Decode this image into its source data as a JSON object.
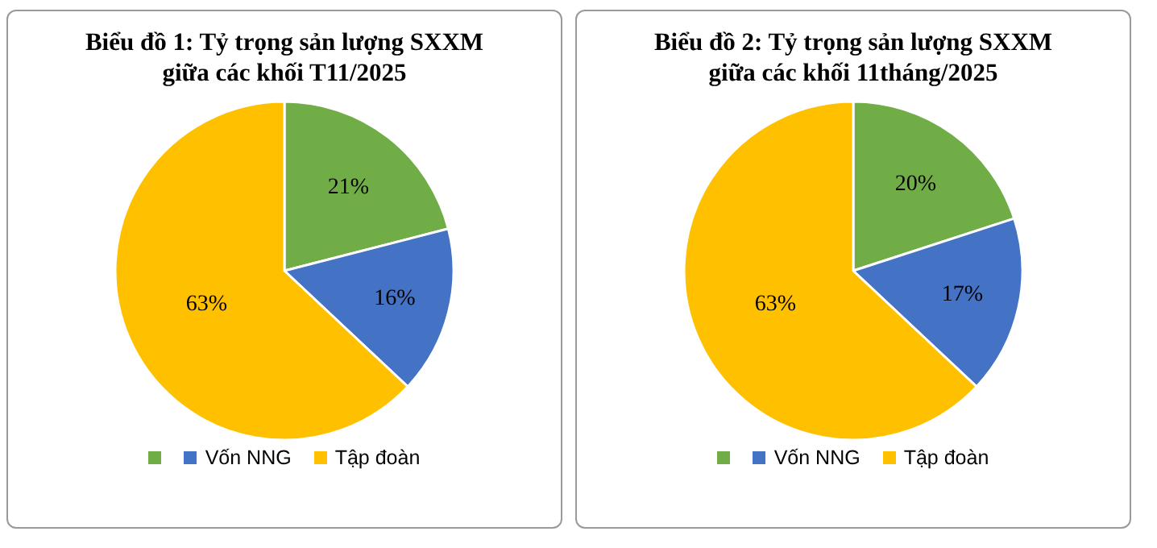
{
  "chart_data": [
    {
      "type": "pie",
      "title": "Biểu đồ 1: Tỷ trọng sản lượng SXXM giữa các khối  T11/2025",
      "categories": [
        null,
        "Vốn NNG",
        "Tập đoàn"
      ],
      "values": [
        21,
        16,
        63
      ],
      "value_labels": [
        "21%",
        "16%",
        "63%"
      ],
      "colors": [
        "#70ad47",
        "#4472c4",
        "#ffc000"
      ],
      "legend": "bottom"
    },
    {
      "type": "pie",
      "title": "Biểu đồ 2: Tỷ trọng sản lượng SXXM giữa các khối 11tháng/2025",
      "categories": [
        null,
        "Vốn NNG",
        "Tập đoàn"
      ],
      "values": [
        20,
        17,
        63
      ],
      "value_labels": [
        "20%",
        "17%",
        "63%"
      ],
      "colors": [
        "#70ad47",
        "#4472c4",
        "#ffc000"
      ],
      "legend": "bottom"
    }
  ]
}
